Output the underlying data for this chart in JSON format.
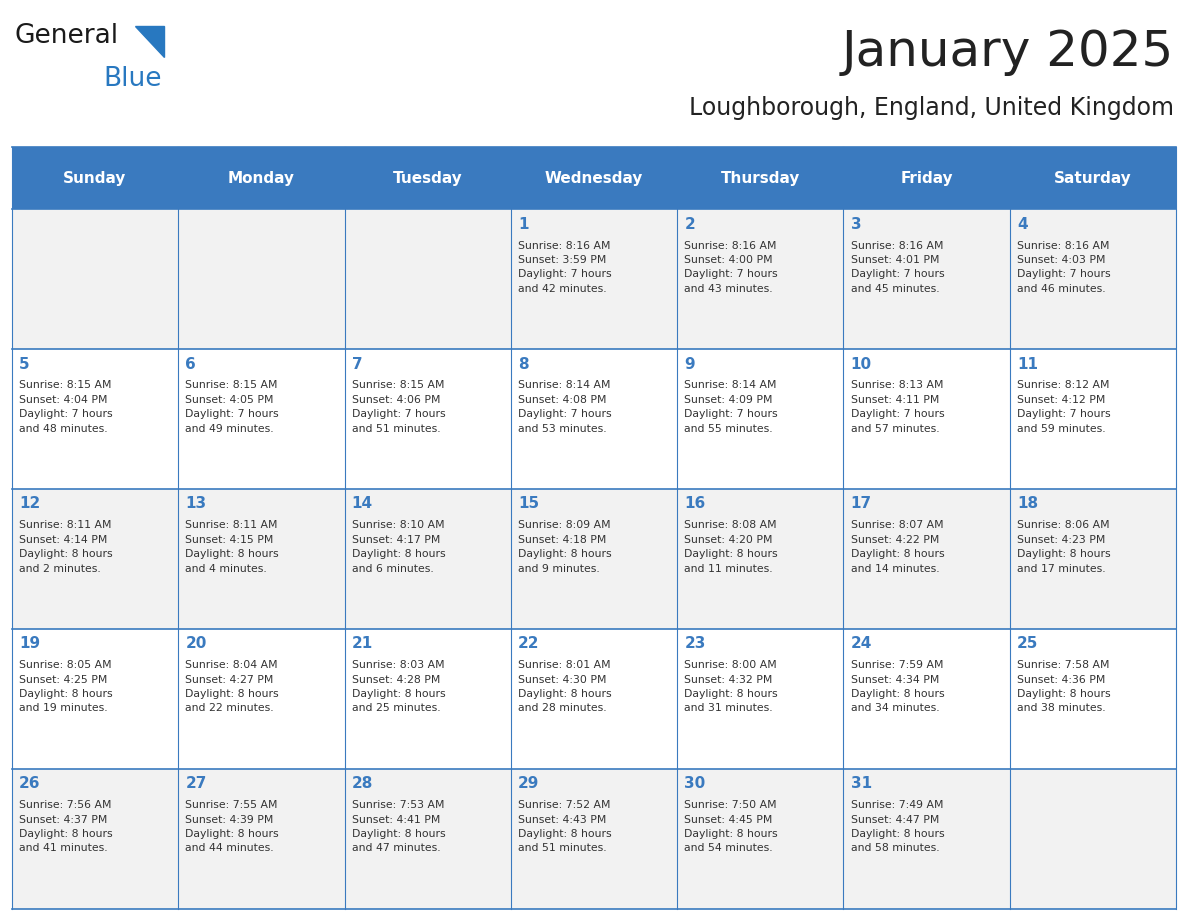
{
  "title": "January 2025",
  "subtitle": "Loughborough, England, United Kingdom",
  "header_bg": "#3a7abf",
  "header_text_color": "#ffffff",
  "cell_bg_odd": "#f2f2f2",
  "cell_bg_even": "#ffffff",
  "border_color": "#3a7abf",
  "day_headers": [
    "Sunday",
    "Monday",
    "Tuesday",
    "Wednesday",
    "Thursday",
    "Friday",
    "Saturday"
  ],
  "title_color": "#222222",
  "subtitle_color": "#222222",
  "day_number_color": "#3a7abf",
  "cell_text_color": "#333333",
  "calendar": [
    [
      {
        "day": "",
        "text": ""
      },
      {
        "day": "",
        "text": ""
      },
      {
        "day": "",
        "text": ""
      },
      {
        "day": "1",
        "text": "Sunrise: 8:16 AM\nSunset: 3:59 PM\nDaylight: 7 hours\nand 42 minutes."
      },
      {
        "day": "2",
        "text": "Sunrise: 8:16 AM\nSunset: 4:00 PM\nDaylight: 7 hours\nand 43 minutes."
      },
      {
        "day": "3",
        "text": "Sunrise: 8:16 AM\nSunset: 4:01 PM\nDaylight: 7 hours\nand 45 minutes."
      },
      {
        "day": "4",
        "text": "Sunrise: 8:16 AM\nSunset: 4:03 PM\nDaylight: 7 hours\nand 46 minutes."
      }
    ],
    [
      {
        "day": "5",
        "text": "Sunrise: 8:15 AM\nSunset: 4:04 PM\nDaylight: 7 hours\nand 48 minutes."
      },
      {
        "day": "6",
        "text": "Sunrise: 8:15 AM\nSunset: 4:05 PM\nDaylight: 7 hours\nand 49 minutes."
      },
      {
        "day": "7",
        "text": "Sunrise: 8:15 AM\nSunset: 4:06 PM\nDaylight: 7 hours\nand 51 minutes."
      },
      {
        "day": "8",
        "text": "Sunrise: 8:14 AM\nSunset: 4:08 PM\nDaylight: 7 hours\nand 53 minutes."
      },
      {
        "day": "9",
        "text": "Sunrise: 8:14 AM\nSunset: 4:09 PM\nDaylight: 7 hours\nand 55 minutes."
      },
      {
        "day": "10",
        "text": "Sunrise: 8:13 AM\nSunset: 4:11 PM\nDaylight: 7 hours\nand 57 minutes."
      },
      {
        "day": "11",
        "text": "Sunrise: 8:12 AM\nSunset: 4:12 PM\nDaylight: 7 hours\nand 59 minutes."
      }
    ],
    [
      {
        "day": "12",
        "text": "Sunrise: 8:11 AM\nSunset: 4:14 PM\nDaylight: 8 hours\nand 2 minutes."
      },
      {
        "day": "13",
        "text": "Sunrise: 8:11 AM\nSunset: 4:15 PM\nDaylight: 8 hours\nand 4 minutes."
      },
      {
        "day": "14",
        "text": "Sunrise: 8:10 AM\nSunset: 4:17 PM\nDaylight: 8 hours\nand 6 minutes."
      },
      {
        "day": "15",
        "text": "Sunrise: 8:09 AM\nSunset: 4:18 PM\nDaylight: 8 hours\nand 9 minutes."
      },
      {
        "day": "16",
        "text": "Sunrise: 8:08 AM\nSunset: 4:20 PM\nDaylight: 8 hours\nand 11 minutes."
      },
      {
        "day": "17",
        "text": "Sunrise: 8:07 AM\nSunset: 4:22 PM\nDaylight: 8 hours\nand 14 minutes."
      },
      {
        "day": "18",
        "text": "Sunrise: 8:06 AM\nSunset: 4:23 PM\nDaylight: 8 hours\nand 17 minutes."
      }
    ],
    [
      {
        "day": "19",
        "text": "Sunrise: 8:05 AM\nSunset: 4:25 PM\nDaylight: 8 hours\nand 19 minutes."
      },
      {
        "day": "20",
        "text": "Sunrise: 8:04 AM\nSunset: 4:27 PM\nDaylight: 8 hours\nand 22 minutes."
      },
      {
        "day": "21",
        "text": "Sunrise: 8:03 AM\nSunset: 4:28 PM\nDaylight: 8 hours\nand 25 minutes."
      },
      {
        "day": "22",
        "text": "Sunrise: 8:01 AM\nSunset: 4:30 PM\nDaylight: 8 hours\nand 28 minutes."
      },
      {
        "day": "23",
        "text": "Sunrise: 8:00 AM\nSunset: 4:32 PM\nDaylight: 8 hours\nand 31 minutes."
      },
      {
        "day": "24",
        "text": "Sunrise: 7:59 AM\nSunset: 4:34 PM\nDaylight: 8 hours\nand 34 minutes."
      },
      {
        "day": "25",
        "text": "Sunrise: 7:58 AM\nSunset: 4:36 PM\nDaylight: 8 hours\nand 38 minutes."
      }
    ],
    [
      {
        "day": "26",
        "text": "Sunrise: 7:56 AM\nSunset: 4:37 PM\nDaylight: 8 hours\nand 41 minutes."
      },
      {
        "day": "27",
        "text": "Sunrise: 7:55 AM\nSunset: 4:39 PM\nDaylight: 8 hours\nand 44 minutes."
      },
      {
        "day": "28",
        "text": "Sunrise: 7:53 AM\nSunset: 4:41 PM\nDaylight: 8 hours\nand 47 minutes."
      },
      {
        "day": "29",
        "text": "Sunrise: 7:52 AM\nSunset: 4:43 PM\nDaylight: 8 hours\nand 51 minutes."
      },
      {
        "day": "30",
        "text": "Sunrise: 7:50 AM\nSunset: 4:45 PM\nDaylight: 8 hours\nand 54 minutes."
      },
      {
        "day": "31",
        "text": "Sunrise: 7:49 AM\nSunset: 4:47 PM\nDaylight: 8 hours\nand 58 minutes."
      },
      {
        "day": "",
        "text": ""
      }
    ]
  ]
}
